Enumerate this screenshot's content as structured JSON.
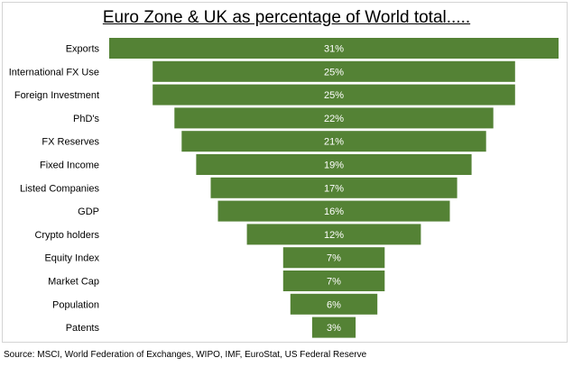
{
  "chart_data": {
    "type": "bar",
    "orientation": "horizontal",
    "style": "funnel",
    "title": "Euro Zone & UK as percentage of World total.....",
    "categories": [
      "Exports",
      "International FX Use",
      "Foreign Investment",
      "PhD's",
      "FX Reserves",
      "Fixed Income",
      "Listed Companies",
      "GDP",
      "Crypto holders",
      "Equity Index",
      "Market Cap",
      "Population",
      "Patents"
    ],
    "values": [
      31,
      25,
      25,
      22,
      21,
      19,
      17,
      16,
      12,
      7,
      7,
      6,
      3
    ],
    "data_labels": [
      "31%",
      "25%",
      "25%",
      "22%",
      "21%",
      "19%",
      "17%",
      "16%",
      "12%",
      "7%",
      "7%",
      "6%",
      "3%"
    ],
    "xlim": [
      0,
      31
    ],
    "grid": false,
    "legend": "none",
    "bar_color": "#548235",
    "label_color": "#ffffff"
  },
  "source": "Source: MSCI, World Federation of Exchanges, WIPO, IMF, EuroStat, US Federal Reserve"
}
